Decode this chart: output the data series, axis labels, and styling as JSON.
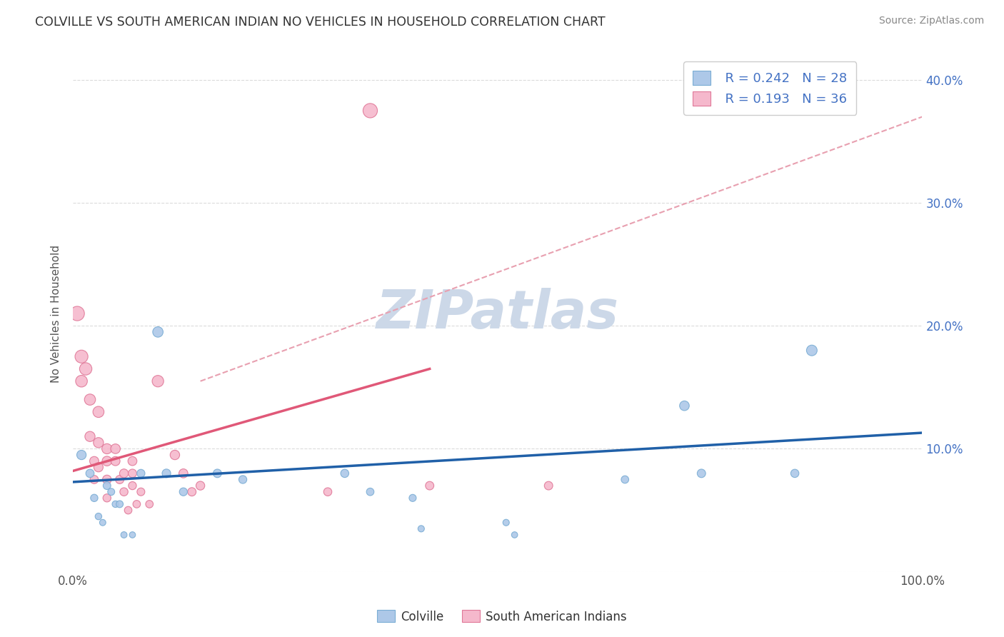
{
  "title": "COLVILLE VS SOUTH AMERICAN INDIAN NO VEHICLES IN HOUSEHOLD CORRELATION CHART",
  "source_text": "Source: ZipAtlas.com",
  "ylabel": "No Vehicles in Household",
  "xlim": [
    0,
    1.0
  ],
  "ylim": [
    0,
    0.42
  ],
  "x_ticks": [
    0.0,
    0.1,
    0.2,
    0.3,
    0.4,
    0.5,
    0.6,
    0.7,
    0.8,
    0.9,
    1.0
  ],
  "y_ticks": [
    0.0,
    0.1,
    0.2,
    0.3,
    0.4
  ],
  "legend_r1": "R = 0.242",
  "legend_n1": "N = 28",
  "legend_r2": "R = 0.193",
  "legend_n2": "N = 36",
  "colville_color": "#adc8e8",
  "colville_edge": "#7aadd4",
  "colville_line_color": "#2060a8",
  "sa_color": "#f5b8cc",
  "sa_edge": "#e07898",
  "sa_line_color": "#e05878",
  "dashed_line_color": "#e8a0b0",
  "watermark_color": "#ccd8e8",
  "background_color": "#ffffff",
  "tick_color": "#4472c4",
  "grid_color": "#cccccc",
  "colville_x": [
    0.01,
    0.02,
    0.025,
    0.03,
    0.035,
    0.04,
    0.045,
    0.05,
    0.055,
    0.06,
    0.07,
    0.08,
    0.1,
    0.11,
    0.13,
    0.17,
    0.2,
    0.32,
    0.35,
    0.4,
    0.41,
    0.51,
    0.52,
    0.65,
    0.72,
    0.74,
    0.85,
    0.87
  ],
  "colville_y": [
    0.095,
    0.08,
    0.06,
    0.045,
    0.04,
    0.07,
    0.065,
    0.055,
    0.055,
    0.03,
    0.03,
    0.08,
    0.195,
    0.08,
    0.065,
    0.08,
    0.075,
    0.08,
    0.065,
    0.06,
    0.035,
    0.04,
    0.03,
    0.075,
    0.135,
    0.08,
    0.08,
    0.18
  ],
  "colville_size": [
    90,
    70,
    55,
    45,
    40,
    60,
    50,
    45,
    50,
    40,
    38,
    65,
    110,
    75,
    65,
    72,
    65,
    68,
    58,
    52,
    42,
    42,
    38,
    58,
    95,
    72,
    68,
    115
  ],
  "sa_x": [
    0.005,
    0.01,
    0.01,
    0.015,
    0.02,
    0.02,
    0.025,
    0.025,
    0.03,
    0.03,
    0.03,
    0.04,
    0.04,
    0.04,
    0.04,
    0.05,
    0.05,
    0.055,
    0.06,
    0.06,
    0.065,
    0.07,
    0.07,
    0.07,
    0.075,
    0.08,
    0.09,
    0.1,
    0.12,
    0.13,
    0.14,
    0.15,
    0.3,
    0.35,
    0.42,
    0.56
  ],
  "sa_y": [
    0.21,
    0.175,
    0.155,
    0.165,
    0.14,
    0.11,
    0.09,
    0.075,
    0.13,
    0.105,
    0.085,
    0.1,
    0.09,
    0.075,
    0.06,
    0.1,
    0.09,
    0.075,
    0.08,
    0.065,
    0.05,
    0.09,
    0.08,
    0.07,
    0.055,
    0.065,
    0.055,
    0.155,
    0.095,
    0.08,
    0.065,
    0.07,
    0.065,
    0.375,
    0.07,
    0.07
  ],
  "sa_size": [
    210,
    170,
    140,
    155,
    125,
    105,
    85,
    70,
    125,
    105,
    88,
    105,
    95,
    80,
    65,
    95,
    85,
    72,
    78,
    68,
    58,
    82,
    72,
    65,
    58,
    62,
    58,
    135,
    92,
    82,
    72,
    78,
    68,
    210,
    72,
    72
  ],
  "colville_trendline": [
    0.0,
    1.0,
    0.073,
    0.113
  ],
  "sa_trendline": [
    0.0,
    0.42,
    0.082,
    0.165
  ],
  "dashed_trendline": [
    0.15,
    1.0,
    0.155,
    0.37
  ]
}
